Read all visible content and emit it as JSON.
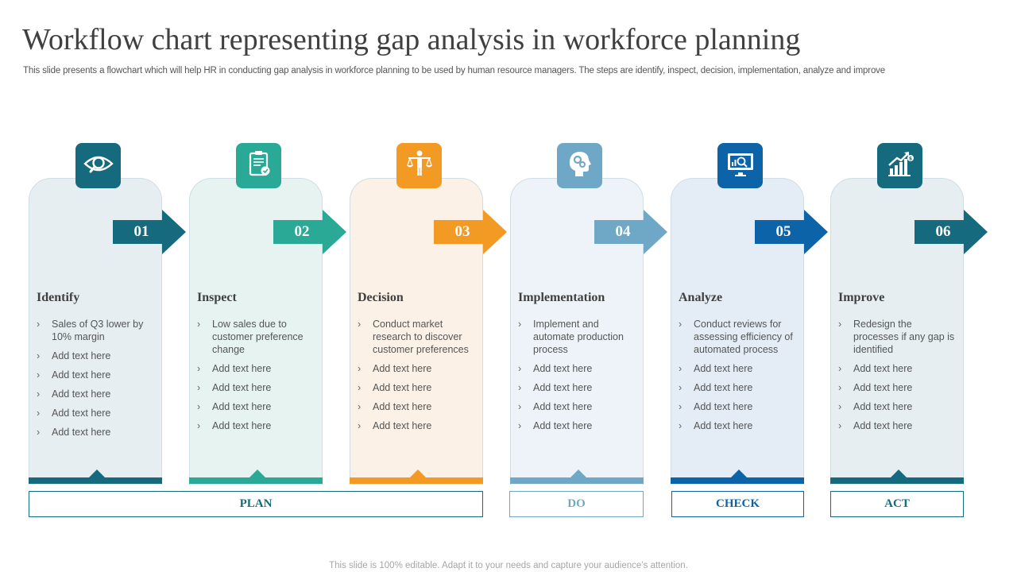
{
  "slide": {
    "title": "Workflow chart representing gap analysis in workforce planning",
    "subtitle": "This slide presents a flowchart which will help HR in conducting gap analysis in workforce planning to be used by human resource managers. The steps are identify, inspect, decision, implementation, analyze and improve",
    "footer": "This slide is 100% editable. Adapt it to your needs and capture your audience’s attention."
  },
  "steps": [
    {
      "number": "01",
      "title": "Identify",
      "icon": "eye-search-icon",
      "color": "#156b7d",
      "card_bg": "#e6eef2",
      "bullets": [
        "Sales of Q3 lower by 10% margin",
        "Add text here",
        "Add text here",
        "Add text here",
        "Add text here",
        "Add text here"
      ]
    },
    {
      "number": "02",
      "title": "Inspect",
      "icon": "clipboard-check-icon",
      "color": "#2aaa96",
      "card_bg": "#e6f3f1",
      "bullets": [
        "Low sales due to customer preference change",
        "Add text here",
        "Add text here",
        "Add text here",
        "Add text here"
      ]
    },
    {
      "number": "03",
      "title": "Decision",
      "icon": "person-scales-icon",
      "color": "#f39a24",
      "card_bg": "#fbf1e6",
      "bullets": [
        "Conduct market research to discover customer preferences",
        "Add text here",
        "Add text here",
        "Add text here",
        "Add text here"
      ]
    },
    {
      "number": "04",
      "title": "Implementation",
      "icon": "head-gears-icon",
      "color": "#6fa8c7",
      "card_bg": "#edf3f8",
      "bullets": [
        "Implement and automate production process",
        "Add text here",
        "Add text here",
        "Add text here",
        "Add text here"
      ]
    },
    {
      "number": "05",
      "title": "Analyze",
      "icon": "monitor-chart-icon",
      "color": "#0d63a8",
      "card_bg": "#e4edf6",
      "bullets": [
        "Conduct reviews for assessing efficiency of automated process",
        "Add text here",
        "Add text here",
        "Add text here",
        "Add text here"
      ]
    },
    {
      "number": "06",
      "title": "Improve",
      "icon": "growth-chart-icon",
      "color": "#156b7d",
      "card_bg": "#e6eef2",
      "bullets": [
        "Redesign the processes if any gap is identified",
        "Add text here",
        "Add text here",
        "Add text here",
        "Add text here"
      ]
    }
  ],
  "phases": [
    {
      "label": "PLAN",
      "color": "#156b7d"
    },
    {
      "label": "DO",
      "color": "#6fa8c7"
    },
    {
      "label": "CHECK",
      "color": "#0d63a8"
    },
    {
      "label": "ACT",
      "color": "#156b7d"
    }
  ]
}
